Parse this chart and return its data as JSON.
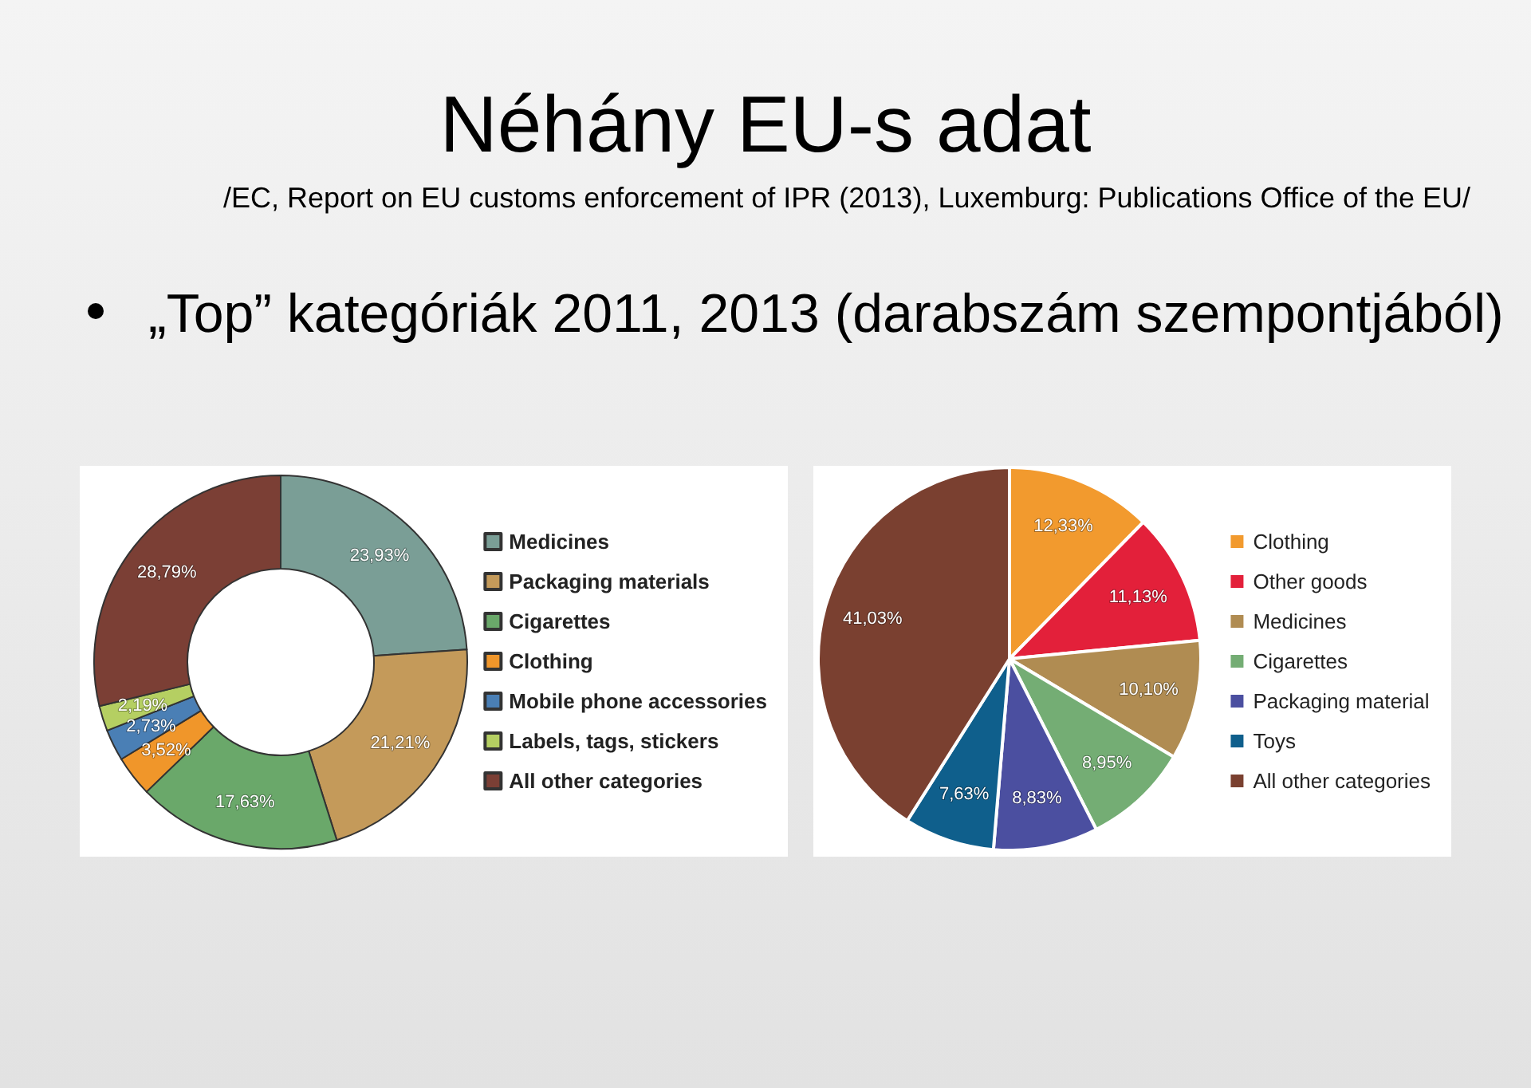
{
  "chart_data": [
    {
      "type": "donut",
      "title": "Néhány EU-s adat",
      "subtitle": "/EC, Report on EU customs enforcement of IPR (2013), Luxemburg: Publications Office of the EU/",
      "annotations": [
        "„Top” kategóriák 2011, 2013 (darabszám szempontjából)"
      ],
      "categories": [
        "Medicines",
        "Packaging materials",
        "Cigarettes",
        "Clothing",
        "Mobile phone accessories",
        "Labels, tags, stickers",
        "All other categories"
      ],
      "values": [
        23.93,
        21.21,
        17.63,
        3.52,
        2.73,
        2.19,
        28.79
      ],
      "value_labels": [
        "23,93%",
        "21,21%",
        "17,63%",
        "3,52%",
        "2,73%",
        "2,19%",
        "28,79%"
      ],
      "colors": [
        "#7a9e96",
        "#c49a5a",
        "#6aa86a",
        "#f0962a",
        "#4a7fb5",
        "#b5cf62",
        "#7b3f35"
      ],
      "legend": "right"
    },
    {
      "type": "pie",
      "categories": [
        "Clothing",
        "Other goods",
        "Medicines",
        "Cigarettes",
        "Packaging material",
        "Toys",
        "All other categories"
      ],
      "values": [
        12.33,
        11.13,
        10.1,
        8.95,
        8.83,
        7.63,
        41.03
      ],
      "value_labels": [
        "12,33%",
        "11,13%",
        "10,10%",
        "8,95%",
        "8,83%",
        "7,63%",
        "41,03%"
      ],
      "colors": [
        "#f29a2e",
        "#e3203a",
        "#b08c52",
        "#74ad74",
        "#4b4fa0",
        "#0f5f8c",
        "#7a4030"
      ],
      "legend": "right"
    }
  ]
}
